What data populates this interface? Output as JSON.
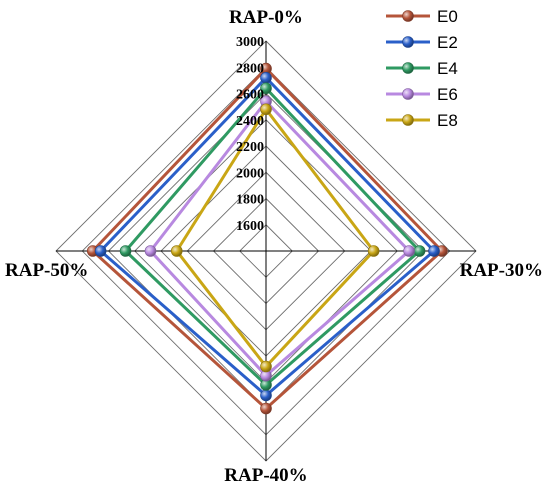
{
  "chart_data": {
    "type": "radar",
    "axes": [
      "RAP-0%",
      "RAP-30%",
      "RAP-40%",
      "RAP-50%"
    ],
    "tick_labels": [
      "1600",
      "1800",
      "2000",
      "2200",
      "2400",
      "2600",
      "2800",
      "3000"
    ],
    "range": [
      1400,
      3000
    ],
    "series": [
      {
        "name": "E0",
        "color": "#b5553a",
        "values": [
          2790,
          2740,
          2600,
          2720
        ]
      },
      {
        "name": "E2",
        "color": "#2a5fc9",
        "values": [
          2720,
          2680,
          2500,
          2660
        ]
      },
      {
        "name": "E4",
        "color": "#2f9a62",
        "values": [
          2640,
          2570,
          2420,
          2470
        ]
      },
      {
        "name": "E6",
        "color": "#b889e0",
        "values": [
          2540,
          2490,
          2350,
          2280
        ]
      },
      {
        "name": "E8",
        "color": "#c9a615",
        "values": [
          2480,
          2220,
          2280,
          2080
        ]
      }
    ],
    "legend_position": "top-right",
    "grid": true
  }
}
